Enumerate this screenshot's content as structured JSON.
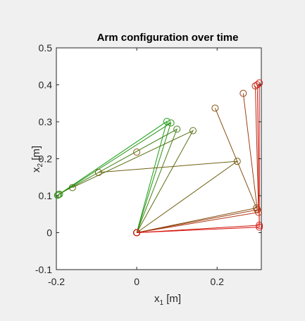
{
  "chart_data": {
    "type": "line",
    "title": "Arm configuration over time",
    "xlabel": {
      "base": "x",
      "sub": "1",
      "unit": " [m]"
    },
    "ylabel": {
      "base": "x",
      "sub": "2",
      "unit": " [m]"
    },
    "xlim": [
      -0.2,
      0.31
    ],
    "ylim": [
      -0.1,
      0.5
    ],
    "xticks": [
      -0.2,
      0,
      0.2
    ],
    "xtick_labels": [
      "-0.2",
      "0",
      "0.2"
    ],
    "yticks": [
      -0.1,
      0,
      0.1,
      0.2,
      0.3,
      0.4,
      0.5
    ],
    "ytick_labels": [
      "-0.1",
      "0",
      "0.1",
      "0.2",
      "0.3",
      "0.4",
      "0.5"
    ],
    "grid": false,
    "base": [
      0,
      0
    ],
    "colors": {
      "start": "#12a012",
      "end": "#e01010",
      "background": "#f0f0f0"
    },
    "arms": [
      {
        "elbow": [
          0.305,
          0.015
        ],
        "hand": [
          0.305,
          0.405
        ]
      },
      {
        "elbow": [
          0.305,
          0.02
        ],
        "hand": [
          0.3,
          0.4
        ]
      },
      {
        "elbow": [
          0.303,
          0.055
        ],
        "hand": [
          0.295,
          0.397
        ]
      },
      {
        "elbow": [
          0.3,
          0.062
        ],
        "hand": [
          0.265,
          0.377
        ]
      },
      {
        "elbow": [
          0.298,
          0.067
        ],
        "hand": [
          0.195,
          0.337
        ]
      },
      {
        "elbow": [
          0.25,
          0.193
        ],
        "hand": [
          -0.095,
          0.163
        ]
      },
      {
        "elbow": [
          0.14,
          0.276
        ],
        "hand": [
          -0.16,
          0.122
        ]
      },
      {
        "elbow": [
          0.1,
          0.28
        ],
        "hand": [
          -0.195,
          0.103
        ]
      },
      {
        "elbow": [
          0.085,
          0.297
        ],
        "hand": [
          -0.192,
          0.104
        ]
      },
      {
        "elbow": [
          0.075,
          0.301
        ],
        "hand": [
          -0.197,
          0.101
        ]
      }
    ],
    "extra_markers": [
      {
        "x": 0.0,
        "y": 0.218,
        "color": "#8a5a10"
      }
    ]
  }
}
